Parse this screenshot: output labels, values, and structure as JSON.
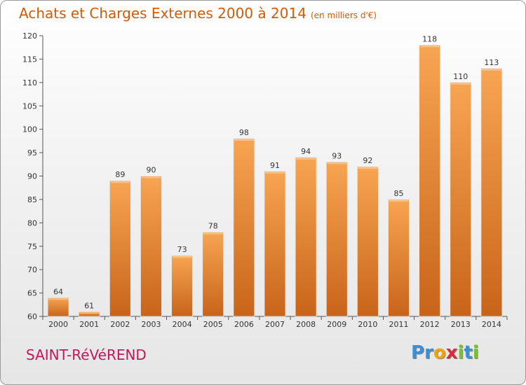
{
  "title": "Achats et Charges Externes 2000 à 2014",
  "unit": "(en milliers d'€)",
  "city": "SAINT-RéVéREND",
  "logo": {
    "letters": [
      {
        "ch": "P",
        "color": "#3a8fd6"
      },
      {
        "ch": "r",
        "color": "#3a8fd6"
      },
      {
        "ch": "o",
        "color": "#f2a20a"
      },
      {
        "ch": "x",
        "color": "#d92b3a"
      },
      {
        "ch": "i",
        "color": "#7bbf2a"
      },
      {
        "ch": "t",
        "color": "#3a8fd6"
      },
      {
        "ch": "i",
        "color": "#7bbf2a"
      }
    ]
  },
  "chart_data": {
    "type": "bar",
    "title": "Achats et Charges Externes 2000 à 2014",
    "categories": [
      "2000",
      "2001",
      "2002",
      "2003",
      "2004",
      "2005",
      "2006",
      "2007",
      "2008",
      "2009",
      "2010",
      "2011",
      "2012",
      "2013",
      "2014"
    ],
    "values": [
      64,
      61,
      89,
      90,
      73,
      78,
      98,
      91,
      94,
      93,
      92,
      85,
      118,
      110,
      113
    ],
    "ylim": [
      60,
      120
    ],
    "yticks": [
      60,
      65,
      70,
      75,
      80,
      85,
      90,
      95,
      100,
      105,
      110,
      115,
      120
    ],
    "grid": false,
    "colors": {
      "bar_light": "#f7a552",
      "bar_dark": "#c8641a",
      "axis": "#555555",
      "text": "#333333"
    }
  }
}
